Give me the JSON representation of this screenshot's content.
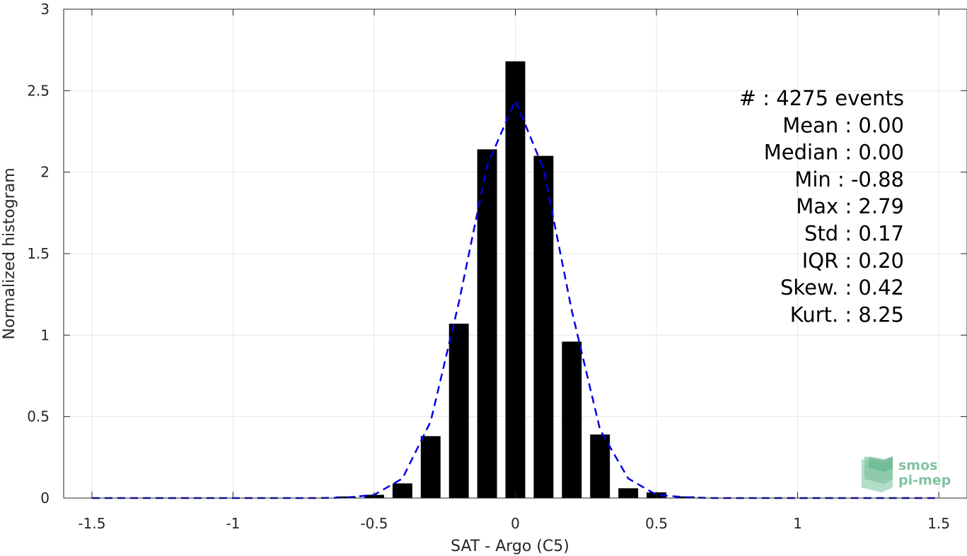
{
  "chart_data": {
    "type": "bar",
    "xlabel": "SAT - Argo (C5)",
    "ylabel": "Normalized histogram",
    "xlim": [
      -1.6,
      1.6
    ],
    "ylim": [
      0,
      3
    ],
    "grid": true,
    "colors": {
      "bars": "#000000",
      "fit_line": "#0000e6",
      "grid": "#e6e6e6",
      "logo": "#7fc3a0"
    },
    "xticks": [
      {
        "value": -1.5,
        "label": "-1.5"
      },
      {
        "value": -1,
        "label": "-1"
      },
      {
        "value": -0.5,
        "label": "-0.5"
      },
      {
        "value": 0,
        "label": "0"
      },
      {
        "value": 0.5,
        "label": "0.5"
      },
      {
        "value": 1,
        "label": "1"
      },
      {
        "value": 1.5,
        "label": "1.5"
      }
    ],
    "yticks": [
      {
        "value": 0,
        "label": "0"
      },
      {
        "value": 0.5,
        "label": "0.5"
      },
      {
        "value": 1,
        "label": "1"
      },
      {
        "value": 1.5,
        "label": "1.5"
      },
      {
        "value": 2,
        "label": "2"
      },
      {
        "value": 2.5,
        "label": "2.5"
      },
      {
        "value": 3,
        "label": "3"
      }
    ],
    "bar_width": 0.07,
    "bars": [
      {
        "x": -0.6,
        "y": 0.01
      },
      {
        "x": -0.5,
        "y": 0.02
      },
      {
        "x": -0.4,
        "y": 0.09
      },
      {
        "x": -0.3,
        "y": 0.38
      },
      {
        "x": -0.2,
        "y": 1.07
      },
      {
        "x": -0.1,
        "y": 2.14
      },
      {
        "x": 0.0,
        "y": 2.68
      },
      {
        "x": 0.1,
        "y": 2.1
      },
      {
        "x": 0.2,
        "y": 0.96
      },
      {
        "x": 0.3,
        "y": 0.39
      },
      {
        "x": 0.4,
        "y": 0.06
      },
      {
        "x": 0.5,
        "y": 0.035
      },
      {
        "x": 0.6,
        "y": 0.01
      }
    ],
    "fit_line": {
      "style": "dashed",
      "x": [
        -1.5,
        -1.4,
        -1.3,
        -1.2,
        -1.1,
        -1.0,
        -0.9,
        -0.8,
        -0.7,
        -0.6,
        -0.5,
        -0.4,
        -0.3,
        -0.2,
        -0.1,
        0.0,
        0.1,
        0.2,
        0.3,
        0.4,
        0.5,
        0.6,
        0.7,
        0.8,
        0.9,
        1.0,
        1.1,
        1.2,
        1.3,
        1.4,
        1.5
      ],
      "y": [
        0,
        0,
        0,
        0,
        0,
        0,
        0,
        0,
        0,
        0.003,
        0.02,
        0.12,
        0.47,
        1.2,
        2.04,
        2.44,
        2.02,
        1.15,
        0.42,
        0.12,
        0.02,
        0.005,
        0,
        0,
        0,
        0,
        0,
        0,
        0,
        0,
        0
      ]
    },
    "stats": [
      {
        "label": "#  : 4275 events"
      },
      {
        "label": "Mean : 0.00"
      },
      {
        "label": "Median : 0.00"
      },
      {
        "label": "Min : -0.88"
      },
      {
        "label": "Max : 2.79"
      },
      {
        "label": "Std : 0.17"
      },
      {
        "label": "IQR : 0.20"
      },
      {
        "label": "Skew. : 0.42"
      },
      {
        "label": "Kurt. : 8.25"
      }
    ],
    "logo": {
      "line1": "smos",
      "line2": "pi-mep"
    }
  }
}
